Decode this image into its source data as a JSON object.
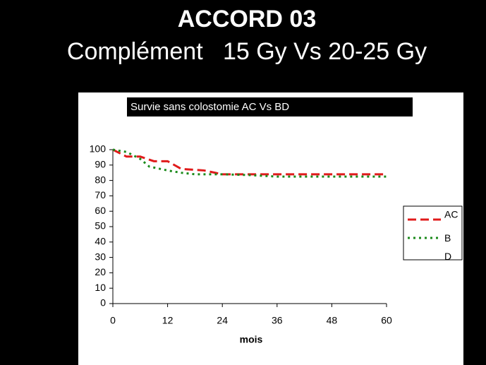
{
  "header": {
    "title": "ACCORD 03",
    "subtitle": "Complément   15 Gy Vs 20-25 Gy"
  },
  "chart_data": {
    "type": "line",
    "title": "Survie sans colostomie AC Vs BD",
    "xlabel": "mois",
    "xlim": [
      0,
      60
    ],
    "xticks": [
      0,
      12,
      24,
      36,
      48,
      60
    ],
    "ylim": [
      0,
      100
    ],
    "yticks": [
      0,
      10,
      20,
      30,
      40,
      50,
      60,
      70,
      80,
      90,
      100
    ],
    "legend": "right",
    "series": [
      {
        "name": "AC",
        "color": "#e01b1b",
        "dash": "12 6",
        "x": [
          0,
          3,
          6,
          9,
          12,
          15,
          20,
          24,
          30,
          36,
          48,
          60
        ],
        "values": [
          100,
          95.5,
          95.5,
          92.5,
          92.5,
          87.5,
          86.5,
          84,
          84,
          84,
          84,
          84
        ]
      },
      {
        "name": "BD",
        "color": "#1a8a1a",
        "dash": "3 5",
        "x": [
          0,
          3,
          6,
          8,
          12,
          15,
          18,
          24,
          30,
          36,
          42,
          48,
          60
        ],
        "values": [
          100,
          98.5,
          94,
          89,
          86.5,
          85,
          84,
          84,
          83.5,
          82.5,
          82.5,
          82.5,
          82.5
        ]
      }
    ]
  }
}
